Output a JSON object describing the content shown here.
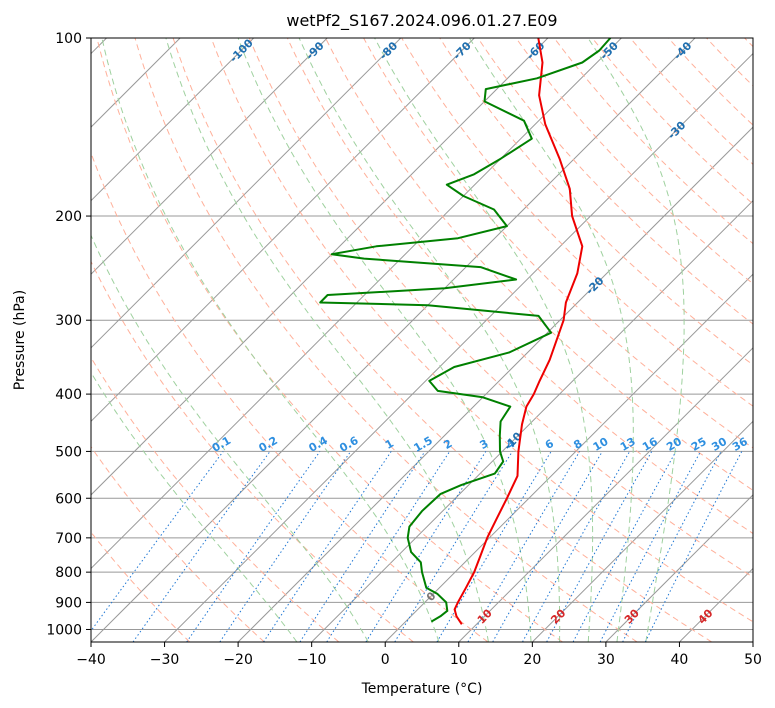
{
  "chart_data": {
    "type": "line",
    "title": "wetPf2_S167.2024.096.01.27.E09",
    "xlabel": "Temperature (°C)",
    "ylabel": "Pressure (hPa)",
    "xlim": [
      -40,
      50
    ],
    "ylim": [
      1050,
      100
    ],
    "y_scale": "log",
    "grid": true,
    "x_ticks": [
      -40,
      -30,
      -20,
      -10,
      0,
      10,
      20,
      30,
      40,
      50
    ],
    "x_tick_labels": [
      "−40",
      "−30",
      "−20",
      "−10",
      "0",
      "10",
      "20",
      "30",
      "40",
      "50"
    ],
    "y_ticks": [
      1000,
      900,
      800,
      700,
      600,
      500,
      400,
      300,
      200,
      100
    ],
    "isotherm_labels": [
      {
        "t": -100,
        "text": "-100"
      },
      {
        "t": -90,
        "text": "-90"
      },
      {
        "t": -80,
        "text": "-80"
      },
      {
        "t": -70,
        "text": "-70"
      },
      {
        "t": -60,
        "text": "-60"
      },
      {
        "t": -50,
        "text": "-50"
      },
      {
        "t": -40,
        "text": "-40"
      },
      {
        "t": -30,
        "text": "-30"
      },
      {
        "t": -20,
        "text": "-20"
      },
      {
        "t": -10,
        "text": "-10"
      },
      {
        "t": 0,
        "text": "0"
      },
      {
        "t": 10,
        "text": "10"
      },
      {
        "t": 20,
        "text": "20"
      },
      {
        "t": 30,
        "text": "30"
      },
      {
        "t": 40,
        "text": "40"
      }
    ],
    "mixing_ratio_labels": [
      "0.1",
      "0.2",
      "0.4",
      "0.6",
      "1",
      "1.5",
      "2",
      "3",
      "4",
      "6",
      "8",
      "10",
      "13",
      "16",
      "20",
      "25",
      "30",
      "36"
    ],
    "colors": {
      "temperature": "#ee0000",
      "dewpoint": "#008000",
      "isotherm": "#999999",
      "dry_adiabat": "#ffb09a",
      "moist_adiabat": "#9fd19f",
      "mixing_ratio": "#1f77d4",
      "label_blue": "#1f6fb0",
      "label_red": "#d62728"
    },
    "series": [
      {
        "name": "Temperature",
        "points": [
          {
            "p": 980,
            "t": 8.0
          },
          {
            "p": 950,
            "t": 6.2
          },
          {
            "p": 925,
            "t": 5.0
          },
          {
            "p": 900,
            "t": 4.5
          },
          {
            "p": 850,
            "t": 3.6
          },
          {
            "p": 800,
            "t": 2.6
          },
          {
            "p": 750,
            "t": 1.2
          },
          {
            "p": 700,
            "t": -0.3
          },
          {
            "p": 650,
            "t": -1.6
          },
          {
            "p": 600,
            "t": -3.0
          },
          {
            "p": 550,
            "t": -4.6
          },
          {
            "p": 500,
            "t": -7.8
          },
          {
            "p": 450,
            "t": -11.0
          },
          {
            "p": 420,
            "t": -12.8
          },
          {
            "p": 400,
            "t": -13.5
          },
          {
            "p": 380,
            "t": -14.5
          },
          {
            "p": 350,
            "t": -16.0
          },
          {
            "p": 300,
            "t": -19.5
          },
          {
            "p": 280,
            "t": -21.6
          },
          {
            "p": 250,
            "t": -24.0
          },
          {
            "p": 225,
            "t": -27.0
          },
          {
            "p": 200,
            "t": -32.5
          },
          {
            "p": 180,
            "t": -36.5
          },
          {
            "p": 160,
            "t": -42.0
          },
          {
            "p": 140,
            "t": -48.6
          },
          {
            "p": 125,
            "t": -53.4
          },
          {
            "p": 110,
            "t": -57.4
          },
          {
            "p": 100,
            "t": -61.3
          }
        ]
      },
      {
        "name": "Dewpoint",
        "points": [
          {
            "p": 970,
            "t": 3.5
          },
          {
            "p": 950,
            "t": 4.0
          },
          {
            "p": 930,
            "t": 4.2
          },
          {
            "p": 900,
            "t": 2.9
          },
          {
            "p": 870,
            "t": 0.5
          },
          {
            "p": 850,
            "t": -1.8
          },
          {
            "p": 800,
            "t": -4.5
          },
          {
            "p": 770,
            "t": -6.0
          },
          {
            "p": 740,
            "t": -8.7
          },
          {
            "p": 700,
            "t": -11.1
          },
          {
            "p": 670,
            "t": -12.4
          },
          {
            "p": 630,
            "t": -12.8
          },
          {
            "p": 590,
            "t": -12.6
          },
          {
            "p": 570,
            "t": -11.0
          },
          {
            "p": 545,
            "t": -8.0
          },
          {
            "p": 520,
            "t": -8.5
          },
          {
            "p": 500,
            "t": -10.3
          },
          {
            "p": 470,
            "t": -12.5
          },
          {
            "p": 445,
            "t": -14.3
          },
          {
            "p": 420,
            "t": -15.0
          },
          {
            "p": 405,
            "t": -20.0
          },
          {
            "p": 395,
            "t": -27.0
          },
          {
            "p": 380,
            "t": -29.5
          },
          {
            "p": 360,
            "t": -28.0
          },
          {
            "p": 340,
            "t": -22.5
          },
          {
            "p": 315,
            "t": -19.5
          },
          {
            "p": 295,
            "t": -23.5
          },
          {
            "p": 283,
            "t": -40.0
          },
          {
            "p": 280,
            "t": -55.0
          },
          {
            "p": 272,
            "t": -55.0
          },
          {
            "p": 265,
            "t": -40.0
          },
          {
            "p": 256,
            "t": -31.5
          },
          {
            "p": 244,
            "t": -38.0
          },
          {
            "p": 236,
            "t": -55.0
          },
          {
            "p": 232,
            "t": -60.0
          },
          {
            "p": 225,
            "t": -55.0
          },
          {
            "p": 218,
            "t": -45.0
          },
          {
            "p": 208,
            "t": -40.0
          },
          {
            "p": 195,
            "t": -44.0
          },
          {
            "p": 185,
            "t": -50.0
          },
          {
            "p": 177,
            "t": -53.8
          },
          {
            "p": 170,
            "t": -51.5
          },
          {
            "p": 160,
            "t": -50.0
          },
          {
            "p": 148,
            "t": -48.5
          },
          {
            "p": 138,
            "t": -52.0
          },
          {
            "p": 128,
            "t": -60.0
          },
          {
            "p": 122,
            "t": -61.5
          },
          {
            "p": 117,
            "t": -56.0
          },
          {
            "p": 110,
            "t": -52.0
          },
          {
            "p": 105,
            "t": -51.3
          },
          {
            "p": 100,
            "t": -51.5
          }
        ]
      }
    ]
  }
}
